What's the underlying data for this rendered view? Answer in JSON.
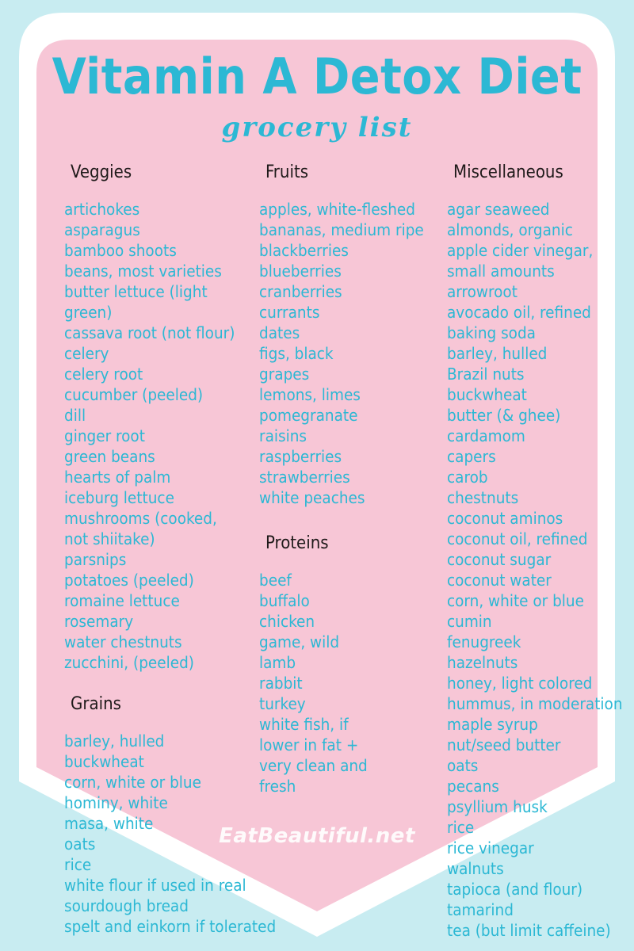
{
  "title": "Vitamin A Detox Diet",
  "subtitle": "grocery list",
  "watermark": "EatBeautiful.net",
  "colors": {
    "background": "#c8ecf1",
    "border": "#ffffff",
    "card": "#f7c6d6",
    "accent": "#2cb8d4",
    "heading": "#1f1a1a"
  },
  "sections": {
    "veggies": {
      "heading": "Veggies",
      "items": [
        "artichokes",
        "asparagus",
        "bamboo shoots",
        "beans, most varieties",
        "butter lettuce (light",
        "green)",
        "cassava root (not flour)",
        "celery",
        "celery root",
        "cucumber (peeled)",
        "dill",
        "ginger root",
        "green beans",
        "hearts of  palm",
        "iceburg lettuce",
        "mushrooms (cooked,",
        "not shiitake)",
        "parsnips",
        "potatoes (peeled)",
        "romaine lettuce",
        "rosemary",
        "water chestnuts",
        "zucchini, (peeled)"
      ]
    },
    "grains": {
      "heading": "Grains",
      "items": [
        "barley, hulled",
        "buckwheat",
        "corn, white or blue",
        "hominy, white",
        "masa, white",
        "oats",
        "rice",
        "white flour if used in real",
        "sourdough bread",
        "spelt and einkorn if tolerated"
      ]
    },
    "fruits": {
      "heading": "Fruits",
      "items": [
        "apples, white-fleshed",
        "bananas, medium ripe",
        "blackberries",
        "blueberries",
        "cranberries",
        "currants",
        "dates",
        "figs, black",
        "grapes",
        "lemons, limes",
        "pomegranate",
        "raisins",
        "raspberries",
        "strawberries",
        "white peaches"
      ]
    },
    "proteins": {
      "heading": "Proteins",
      "items": [
        "beef",
        "buffalo",
        "chicken",
        "game, wild",
        "lamb",
        "rabbit",
        "turkey",
        "white fish, if",
        "lower in fat +",
        "very clean and",
        "fresh"
      ]
    },
    "misc": {
      "heading": "Miscellaneous",
      "items": [
        "agar seaweed",
        "almonds, organic",
        "apple cider vinegar,",
        "small amounts",
        "arrowroot",
        "avocado oil, refined",
        "baking soda",
        "barley, hulled",
        "Brazil nuts",
        "buckwheat",
        "butter (& ghee)",
        "cardamom",
        "capers",
        "carob",
        "chestnuts",
        "coconut aminos",
        "coconut oil, refined",
        "coconut sugar",
        "coconut water",
        "corn, white or blue",
        "cumin",
        "fenugreek",
        "hazelnuts",
        "honey, light colored",
        "hummus, in  moderation",
        "maple syrup",
        "nut/seed butter",
        "oats",
        "pecans",
        "psyllium husk",
        "rice",
        "rice vinegar",
        "walnuts",
        "tapioca (and flour)",
        "tamarind",
        "tea (but limit caffeine)"
      ]
    }
  }
}
